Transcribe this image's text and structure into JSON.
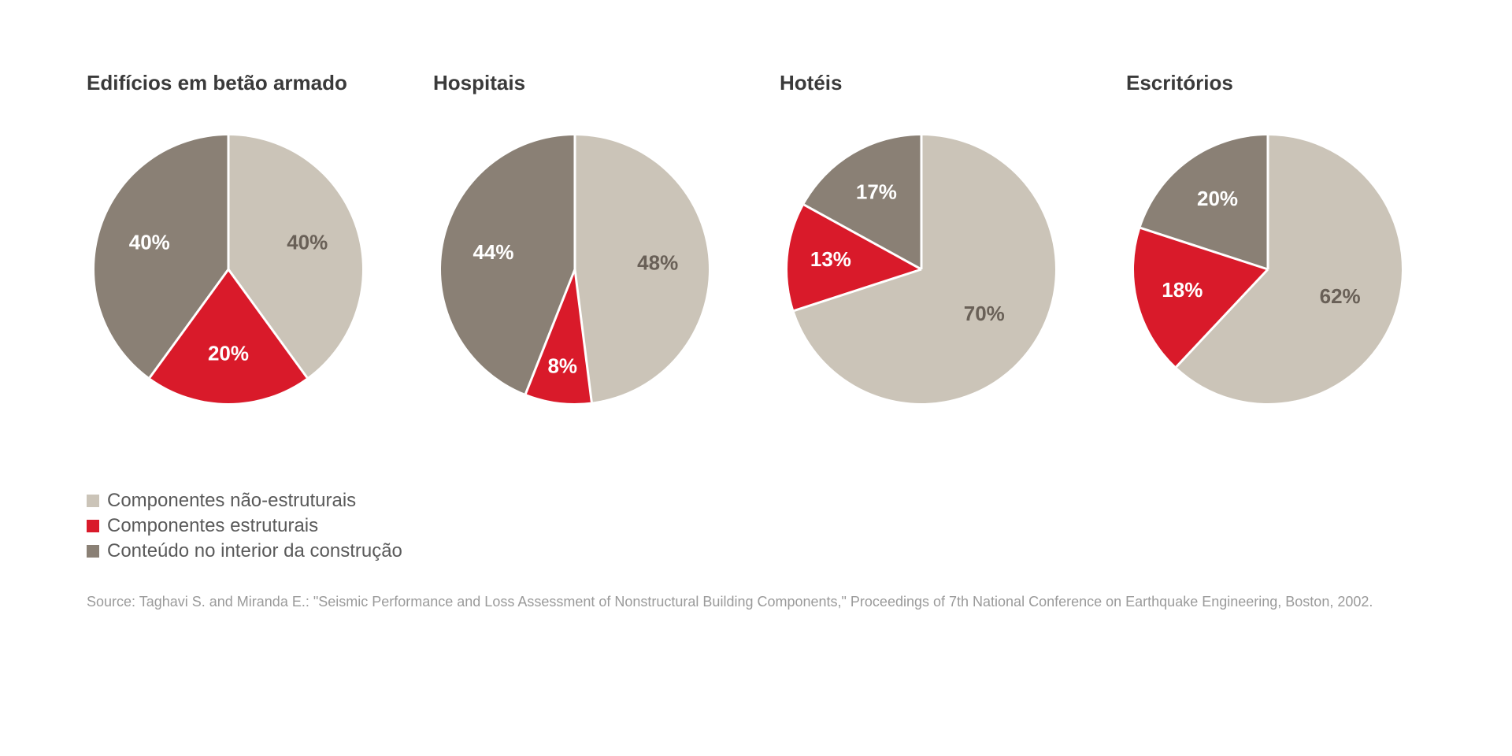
{
  "colors": {
    "nonstructural": "#cbc4b8",
    "structural": "#d91a2a",
    "contents": "#8a8075",
    "separator": "#ffffff",
    "background": "#ffffff",
    "label_light": "#ffffff",
    "label_dark": "#696057",
    "text": "#3a3a3a",
    "source_text": "#9a9a9a"
  },
  "pie_style": {
    "radius": 170,
    "separator_width": 3,
    "label_fontsize": 26,
    "label_fontweight": "700",
    "title_fontsize": 26,
    "title_fontweight": "700",
    "start_angle_deg": -90,
    "direction": "clockwise"
  },
  "charts": [
    {
      "title": "Edifícios em betão armado",
      "slices": [
        {
          "key": "nonstructural",
          "value": 40,
          "label": "40%",
          "label_color": "label_dark",
          "label_r": 0.62
        },
        {
          "key": "structural",
          "value": 20,
          "label": "20%",
          "label_color": "label_light",
          "label_r": 0.64
        },
        {
          "key": "contents",
          "value": 40,
          "label": "40%",
          "label_color": "label_light",
          "label_r": 0.62
        }
      ]
    },
    {
      "title": "Hospitais",
      "slices": [
        {
          "key": "nonstructural",
          "value": 48,
          "label": "48%",
          "label_color": "label_dark",
          "label_r": 0.62
        },
        {
          "key": "structural",
          "value": 8,
          "label": "8%",
          "label_color": "label_light",
          "label_r": 0.74
        },
        {
          "key": "contents",
          "value": 44,
          "label": "44%",
          "label_color": "label_light",
          "label_r": 0.62
        }
      ]
    },
    {
      "title": "Hotéis",
      "slices": [
        {
          "key": "nonstructural",
          "value": 70,
          "label": "70%",
          "label_color": "label_dark",
          "label_r": 0.58
        },
        {
          "key": "structural",
          "value": 13,
          "label": "13%",
          "label_color": "label_light",
          "label_r": 0.68
        },
        {
          "key": "contents",
          "value": 17,
          "label": "17%",
          "label_color": "label_light",
          "label_r": 0.66
        }
      ]
    },
    {
      "title": "Escritórios",
      "slices": [
        {
          "key": "nonstructural",
          "value": 62,
          "label": "62%",
          "label_color": "label_dark",
          "label_r": 0.58
        },
        {
          "key": "structural",
          "value": 18,
          "label": "18%",
          "label_color": "label_light",
          "label_r": 0.66
        },
        {
          "key": "contents",
          "value": 20,
          "label": "20%",
          "label_color": "label_light",
          "label_r": 0.64
        }
      ]
    }
  ],
  "legend": [
    {
      "swatch": "nonstructural",
      "label": "Componentes não-estruturais"
    },
    {
      "swatch": "structural",
      "label": "Componentes estruturais"
    },
    {
      "swatch": "contents",
      "label": "Conteúdo no interior da construção"
    }
  ],
  "source": "Source: Taghavi S. and Miranda E.: \"Seismic Performance and Loss Assessment of Nonstructural Building Components,\" Proceedings of 7th National Conference on Earthquake Engineering, Boston, 2002."
}
